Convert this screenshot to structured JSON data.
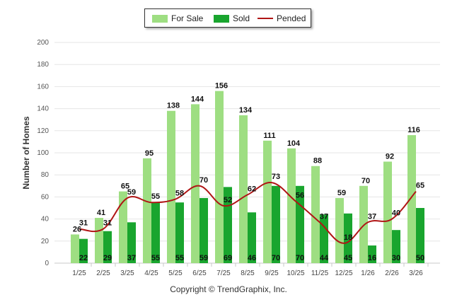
{
  "chart_data": {
    "type": "bar",
    "title": "",
    "xlabel": "",
    "ylabel": "Number of Homes",
    "ylim": [
      0,
      200
    ],
    "yticks": [
      0,
      20,
      40,
      60,
      80,
      100,
      120,
      140,
      160,
      180,
      200
    ],
    "grid": true,
    "legend_position": "top-center",
    "categories": [
      "1/25",
      "2/25",
      "3/25",
      "4/25",
      "5/25",
      "6/25",
      "7/25",
      "8/25",
      "9/25",
      "10/25",
      "11/25",
      "12/25",
      "1/26",
      "2/26",
      "3/26"
    ],
    "series": [
      {
        "name": "For Sale",
        "kind": "bar",
        "color": "#9ede82",
        "values": [
          26,
          41,
          65,
          95,
          138,
          144,
          156,
          134,
          111,
          104,
          88,
          59,
          70,
          92,
          116
        ]
      },
      {
        "name": "Sold",
        "kind": "bar",
        "color": "#19a52e",
        "values": [
          22,
          29,
          37,
          55,
          55,
          59,
          69,
          46,
          70,
          70,
          44,
          45,
          16,
          30,
          50
        ]
      },
      {
        "name": "Pended",
        "kind": "line",
        "color": "#b01515",
        "values": [
          31,
          31,
          59,
          55,
          58,
          70,
          52,
          62,
          73,
          56,
          37,
          18,
          37,
          40,
          65
        ]
      }
    ]
  },
  "footer": {
    "copyright": "Copyright © TrendGraphix, Inc."
  }
}
